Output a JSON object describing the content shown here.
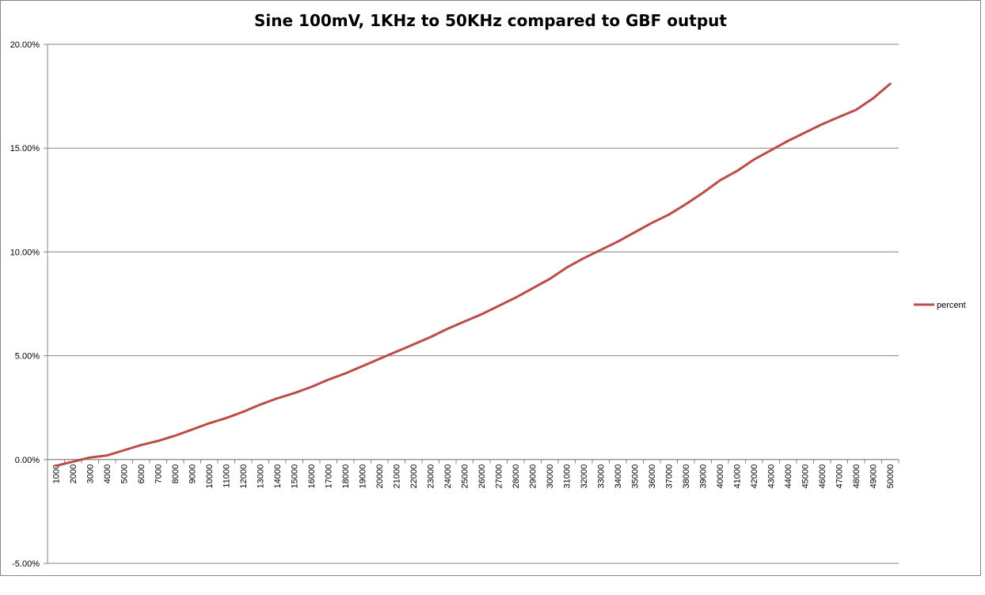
{
  "chart_data": {
    "type": "line",
    "title": "Sine 100mV, 1KHz to 50KHz compared to GBF output",
    "xlabel": "",
    "ylabel": "",
    "ylim": [
      -0.05,
      0.2
    ],
    "yticks": [
      -0.05,
      0.0,
      0.05,
      0.1,
      0.15,
      0.2
    ],
    "ytick_labels": [
      "-5.00%",
      "0.00%",
      "5.00%",
      "10.00%",
      "15.00%",
      "20.00%"
    ],
    "grid": true,
    "legend_position": "right",
    "categories": [
      "1000",
      "2000",
      "3000",
      "4000",
      "5000",
      "6000",
      "7000",
      "8000",
      "9000",
      "10000",
      "11000",
      "12000",
      "13000",
      "14000",
      "15000",
      "16000",
      "17000",
      "18000",
      "19000",
      "20000",
      "21000",
      "22000",
      "23000",
      "24000",
      "25000",
      "26000",
      "27000",
      "28000",
      "29000",
      "30000",
      "31000",
      "32000",
      "33000",
      "34000",
      "35000",
      "36000",
      "37000",
      "38000",
      "39000",
      "40000",
      "41000",
      "42000",
      "43000",
      "44000",
      "45000",
      "46000",
      "47000",
      "48000",
      "49000",
      "50000"
    ],
    "series": [
      {
        "name": "percent",
        "color": "#be4b48",
        "values": [
          -0.003,
          -0.001,
          0.001,
          0.002,
          0.0045,
          0.007,
          0.009,
          0.0115,
          0.0145,
          0.0175,
          0.02,
          0.023,
          0.0265,
          0.0295,
          0.032,
          0.035,
          0.0385,
          0.0415,
          0.045,
          0.0485,
          0.052,
          0.0555,
          0.059,
          0.063,
          0.0665,
          0.07,
          0.074,
          0.078,
          0.0825,
          0.087,
          0.0925,
          0.097,
          0.101,
          0.105,
          0.1095,
          0.114,
          0.118,
          0.123,
          0.1285,
          0.1345,
          0.139,
          0.1445,
          0.149,
          0.1535,
          0.1575,
          0.1615,
          0.165,
          0.1685,
          0.174,
          0.181
        ]
      }
    ]
  }
}
